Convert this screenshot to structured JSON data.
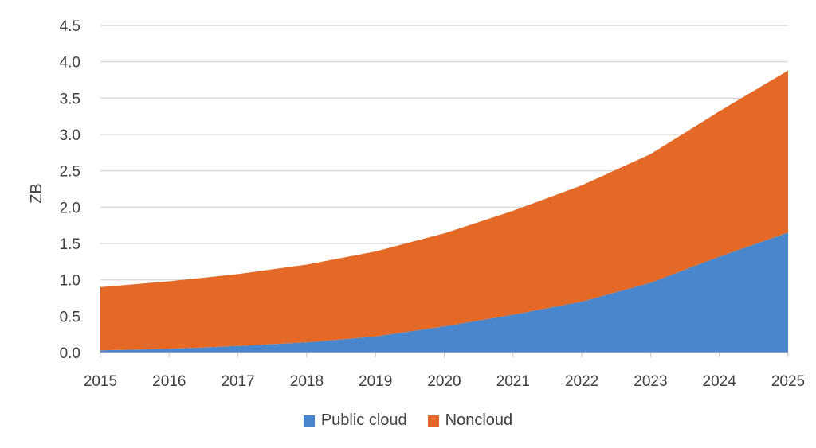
{
  "chart_data": {
    "type": "area",
    "stacked": true,
    "x": [
      "2015",
      "2016",
      "2017",
      "2018",
      "2019",
      "2020",
      "2021",
      "2022",
      "2023",
      "2024",
      "2025"
    ],
    "series": [
      {
        "name": "Public cloud",
        "color": "#4a86cc",
        "values": [
          0.03,
          0.05,
          0.09,
          0.14,
          0.22,
          0.36,
          0.52,
          0.7,
          0.96,
          1.32,
          1.65
        ]
      },
      {
        "name": "Noncloud",
        "color": "#e46826",
        "values": [
          0.87,
          0.93,
          0.99,
          1.07,
          1.17,
          1.28,
          1.43,
          1.6,
          1.77,
          2.0,
          2.23
        ]
      }
    ],
    "ylabel": "ZB",
    "xlabel": "",
    "ylim": [
      0,
      4.5
    ],
    "yticks": [
      "0.0",
      "0.5",
      "1.0",
      "1.5",
      "2.0",
      "2.5",
      "3.0",
      "3.5",
      "4.0",
      "4.5"
    ],
    "grid": true,
    "legend_position": "bottom"
  }
}
